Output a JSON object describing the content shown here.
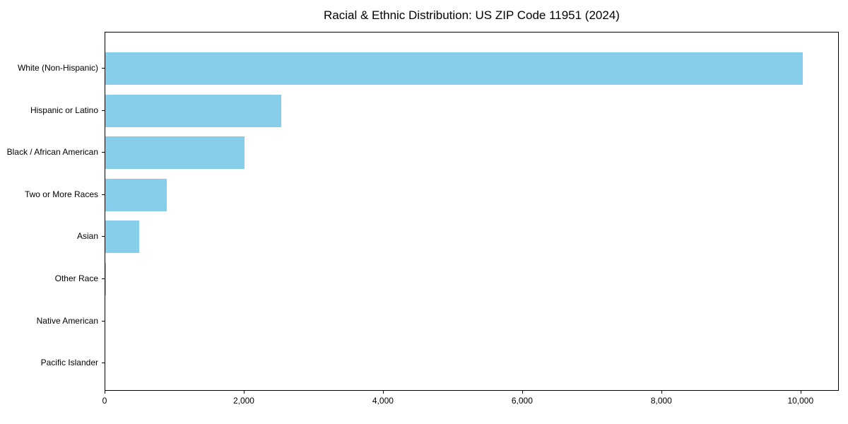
{
  "chart_data": {
    "type": "bar",
    "orientation": "horizontal",
    "title": "Racial & Ethnic Distribution: US ZIP Code 11951 (2024)",
    "categories": [
      "White (Non-Hispanic)",
      "Hispanic or Latino",
      "Black / African American",
      "Two or More Races",
      "Asian",
      "Other Race",
      "Native American",
      "Pacific Islander"
    ],
    "values": [
      10020,
      2530,
      2000,
      880,
      490,
      15,
      0,
      0
    ],
    "xlabel": "",
    "ylabel": "",
    "xlim": [
      0,
      10530
    ],
    "x_ticks": [
      0,
      2000,
      4000,
      6000,
      8000,
      10000
    ],
    "x_tick_labels": [
      "0",
      "2,000",
      "4,000",
      "6,000",
      "8,000",
      "10,000"
    ],
    "bar_color": "#87CEEB",
    "grid": false,
    "legend": null,
    "background_color": "#ffffff",
    "spine_color": "#000000"
  }
}
